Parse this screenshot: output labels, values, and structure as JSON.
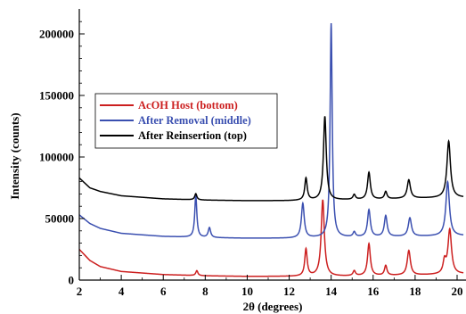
{
  "chart_data": {
    "type": "line",
    "title": "",
    "xlabel": "2θ (degrees)",
    "ylabel": "Intensity (counts)",
    "xlim": [
      2,
      20.3
    ],
    "ylim": [
      0,
      220000
    ],
    "x_ticks": [
      2,
      4,
      6,
      8,
      10,
      12,
      14,
      16,
      18,
      20
    ],
    "x_tick_labels": [
      "2",
      "4",
      "6",
      "8",
      "10",
      "12",
      "14",
      "16",
      "18",
      "20"
    ],
    "y_ticks": [
      0,
      50000,
      100000,
      150000,
      200000
    ],
    "y_tick_labels": [
      "0",
      "50000",
      "100000",
      "150000",
      "200000"
    ],
    "grid": false,
    "legend_position": "center-left",
    "series": [
      {
        "name": "AcOH Host (bottom)",
        "color": "#cc1f1f",
        "baseline": [
          [
            2,
            25000
          ],
          [
            2.5,
            16000
          ],
          [
            3,
            11000
          ],
          [
            4,
            7000
          ],
          [
            6,
            4500
          ],
          [
            8,
            3500
          ],
          [
            10,
            3000
          ],
          [
            12,
            3000
          ],
          [
            14,
            3000
          ],
          [
            16,
            3500
          ],
          [
            18,
            4000
          ],
          [
            20.3,
            5000
          ]
        ],
        "peaks": [
          [
            7.6,
            4000,
            0.06
          ],
          [
            12.8,
            22000,
            0.07
          ],
          [
            13.6,
            62000,
            0.09
          ],
          [
            15.1,
            4000,
            0.07
          ],
          [
            15.8,
            26000,
            0.08
          ],
          [
            16.6,
            8000,
            0.07
          ],
          [
            17.7,
            20000,
            0.09
          ],
          [
            19.4,
            10000,
            0.08
          ],
          [
            19.65,
            36000,
            0.1
          ]
        ]
      },
      {
        "name": "After Removal (middle)",
        "color": "#3a4fb0",
        "baseline": [
          [
            2,
            53000
          ],
          [
            2.5,
            46000
          ],
          [
            3,
            42000
          ],
          [
            4,
            38000
          ],
          [
            6,
            35500
          ],
          [
            8,
            34500
          ],
          [
            10,
            34000
          ],
          [
            12,
            34000
          ],
          [
            14,
            34500
          ],
          [
            16,
            35000
          ],
          [
            18,
            35500
          ],
          [
            20.3,
            36000
          ]
        ],
        "peaks": [
          [
            7.55,
            34000,
            0.06
          ],
          [
            8.2,
            8000,
            0.07
          ],
          [
            12.65,
            28000,
            0.08
          ],
          [
            14.0,
            174000,
            0.06
          ],
          [
            15.1,
            4000,
            0.07
          ],
          [
            15.8,
            22000,
            0.08
          ],
          [
            16.6,
            17000,
            0.08
          ],
          [
            17.75,
            15000,
            0.09
          ],
          [
            19.55,
            44000,
            0.1
          ]
        ]
      },
      {
        "name": "After Reinsertion (top)",
        "color": "#000000",
        "baseline": [
          [
            2,
            83000
          ],
          [
            2.5,
            75000
          ],
          [
            3,
            72000
          ],
          [
            4,
            68500
          ],
          [
            6,
            66000
          ],
          [
            8,
            65000
          ],
          [
            10,
            64500
          ],
          [
            12,
            64500
          ],
          [
            14,
            65000
          ],
          [
            16,
            65500
          ],
          [
            18,
            66500
          ],
          [
            20.3,
            67000
          ]
        ],
        "peaks": [
          [
            7.55,
            5000,
            0.06
          ],
          [
            12.8,
            18000,
            0.07
          ],
          [
            13.7,
            68000,
            0.08
          ],
          [
            15.1,
            4000,
            0.07
          ],
          [
            15.8,
            22000,
            0.08
          ],
          [
            16.6,
            6000,
            0.07
          ],
          [
            17.7,
            15000,
            0.09
          ],
          [
            19.6,
            46000,
            0.1
          ]
        ]
      }
    ]
  }
}
